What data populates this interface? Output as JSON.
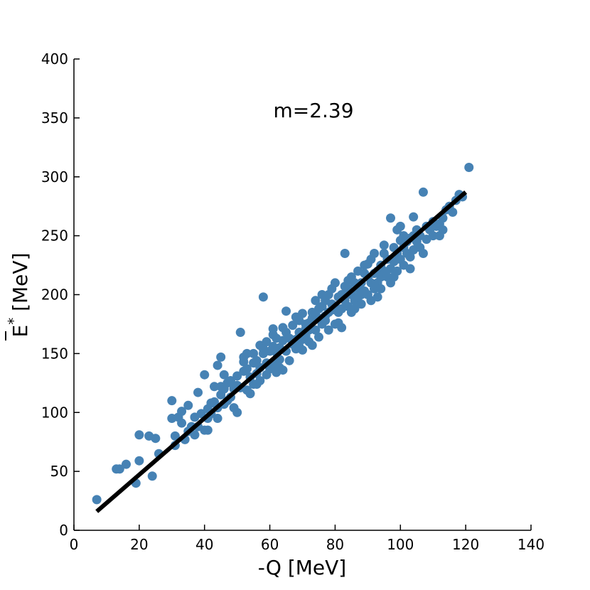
{
  "chart_data": {
    "type": "scatter",
    "xlabel": "-Q [MeV]",
    "ylabel_base": "E",
    "ylabel_sup": "*",
    "ylabel_unit": " [MeV]",
    "annotation": "m=2.39",
    "xlim": [
      0,
      140
    ],
    "ylim": [
      0,
      400
    ],
    "xticks": [
      0,
      20,
      40,
      60,
      80,
      100,
      120,
      140
    ],
    "yticks": [
      0,
      50,
      100,
      150,
      200,
      250,
      300,
      350,
      400
    ],
    "grid": false,
    "colors": {
      "points": "#4682b4",
      "fit": "#000000"
    },
    "fit_line": {
      "x": [
        7,
        120
      ],
      "y": [
        16,
        287
      ]
    },
    "points": [
      [
        7,
        26
      ],
      [
        13,
        52
      ],
      [
        14,
        52
      ],
      [
        16,
        56
      ],
      [
        19,
        40
      ],
      [
        20,
        81
      ],
      [
        20,
        59
      ],
      [
        23,
        80
      ],
      [
        24,
        46
      ],
      [
        25,
        78
      ],
      [
        26,
        65
      ],
      [
        30,
        110
      ],
      [
        30,
        95
      ],
      [
        31,
        80
      ],
      [
        31,
        72
      ],
      [
        32,
        96
      ],
      [
        33,
        101
      ],
      [
        33,
        91
      ],
      [
        34,
        77
      ],
      [
        35,
        106
      ],
      [
        35,
        84
      ],
      [
        36,
        88
      ],
      [
        37,
        81
      ],
      [
        37,
        96
      ],
      [
        38,
        117
      ],
      [
        38,
        88
      ],
      [
        39,
        99
      ],
      [
        40,
        85
      ],
      [
        40,
        132
      ],
      [
        41,
        85
      ],
      [
        41,
        103
      ],
      [
        41,
        95
      ],
      [
        42,
        99
      ],
      [
        42,
        108
      ],
      [
        43,
        122
      ],
      [
        43,
        109
      ],
      [
        44,
        104
      ],
      [
        44,
        95
      ],
      [
        44,
        140
      ],
      [
        45,
        147
      ],
      [
        45,
        115
      ],
      [
        45,
        122
      ],
      [
        46,
        120
      ],
      [
        46,
        107
      ],
      [
        46,
        132
      ],
      [
        47,
        125
      ],
      [
        47,
        110
      ],
      [
        48,
        113
      ],
      [
        48,
        127
      ],
      [
        49,
        104
      ],
      [
        49,
        120
      ],
      [
        50,
        123
      ],
      [
        50,
        100
      ],
      [
        50,
        131
      ],
      [
        51,
        168
      ],
      [
        51,
        121
      ],
      [
        52,
        143
      ],
      [
        52,
        135
      ],
      [
        52,
        147
      ],
      [
        53,
        119
      ],
      [
        53,
        137
      ],
      [
        53,
        150
      ],
      [
        54,
        116
      ],
      [
        54,
        130
      ],
      [
        55,
        142
      ],
      [
        55,
        124
      ],
      [
        55,
        150
      ],
      [
        56,
        133
      ],
      [
        56,
        144
      ],
      [
        56,
        124
      ],
      [
        57,
        157
      ],
      [
        57,
        138
      ],
      [
        57,
        127
      ],
      [
        58,
        150
      ],
      [
        58,
        154
      ],
      [
        58,
        198
      ],
      [
        59,
        142
      ],
      [
        59,
        132
      ],
      [
        59,
        160
      ],
      [
        60,
        137
      ],
      [
        60,
        152
      ],
      [
        61,
        171
      ],
      [
        61,
        166
      ],
      [
        61,
        156
      ],
      [
        61,
        141
      ],
      [
        62,
        134
      ],
      [
        62,
        151
      ],
      [
        62,
        163
      ],
      [
        63,
        155
      ],
      [
        63,
        138
      ],
      [
        63,
        145
      ],
      [
        64,
        172
      ],
      [
        64,
        161
      ],
      [
        64,
        136
      ],
      [
        65,
        168
      ],
      [
        65,
        186
      ],
      [
        65,
        152
      ],
      [
        66,
        163
      ],
      [
        66,
        144
      ],
      [
        67,
        174
      ],
      [
        67,
        158
      ],
      [
        67,
        160
      ],
      [
        68,
        162
      ],
      [
        68,
        154
      ],
      [
        68,
        181
      ],
      [
        69,
        178
      ],
      [
        69,
        168
      ],
      [
        69,
        156
      ],
      [
        70,
        153
      ],
      [
        70,
        162
      ],
      [
        70,
        184
      ],
      [
        71,
        171
      ],
      [
        71,
        165
      ],
      [
        71,
        175
      ],
      [
        72,
        176
      ],
      [
        72,
        160
      ],
      [
        72,
        170
      ],
      [
        73,
        185
      ],
      [
        73,
        157
      ],
      [
        73,
        180
      ],
      [
        74,
        183
      ],
      [
        74,
        170
      ],
      [
        74,
        195
      ],
      [
        75,
        188
      ],
      [
        75,
        180
      ],
      [
        75,
        164
      ],
      [
        76,
        190
      ],
      [
        76,
        175
      ],
      [
        76,
        200
      ],
      [
        77,
        182
      ],
      [
        77,
        195
      ],
      [
        77,
        178
      ],
      [
        78,
        185
      ],
      [
        78,
        200
      ],
      [
        78,
        170
      ],
      [
        79,
        192
      ],
      [
        79,
        205
      ],
      [
        79,
        187
      ],
      [
        80,
        210
      ],
      [
        80,
        190
      ],
      [
        80,
        175
      ],
      [
        81,
        176
      ],
      [
        81,
        198
      ],
      [
        81,
        185
      ],
      [
        82,
        200
      ],
      [
        82,
        188
      ],
      [
        82,
        172
      ],
      [
        83,
        207
      ],
      [
        83,
        195
      ],
      [
        83,
        235
      ],
      [
        84,
        190
      ],
      [
        84,
        205
      ],
      [
        84,
        212
      ],
      [
        85,
        200
      ],
      [
        85,
        185
      ],
      [
        85,
        215
      ],
      [
        86,
        210
      ],
      [
        86,
        195
      ],
      [
        86,
        188
      ],
      [
        87,
        220
      ],
      [
        87,
        205
      ],
      [
        87,
        198
      ],
      [
        88,
        210
      ],
      [
        88,
        200
      ],
      [
        88,
        192
      ],
      [
        89,
        218
      ],
      [
        89,
        203
      ],
      [
        89,
        225
      ],
      [
        90,
        215
      ],
      [
        90,
        200
      ],
      [
        90,
        226
      ],
      [
        91,
        210
      ],
      [
        91,
        195
      ],
      [
        91,
        230
      ],
      [
        92,
        218
      ],
      [
        92,
        205
      ],
      [
        92,
        235
      ],
      [
        93,
        220
      ],
      [
        93,
        210
      ],
      [
        93,
        198
      ],
      [
        94,
        225
      ],
      [
        94,
        215
      ],
      [
        94,
        205
      ],
      [
        95,
        235
      ],
      [
        95,
        220
      ],
      [
        95,
        242
      ],
      [
        96,
        230
      ],
      [
        96,
        215
      ],
      [
        97,
        265
      ],
      [
        97,
        222
      ],
      [
        97,
        210
      ],
      [
        98,
        240
      ],
      [
        98,
        228
      ],
      [
        98,
        215
      ],
      [
        99,
        255
      ],
      [
        99,
        235
      ],
      [
        99,
        220
      ],
      [
        100,
        246
      ],
      [
        100,
        230
      ],
      [
        100,
        258
      ],
      [
        101,
        240
      ],
      [
        101,
        225
      ],
      [
        101,
        250
      ],
      [
        102,
        235
      ],
      [
        102,
        245
      ],
      [
        103,
        232
      ],
      [
        103,
        248
      ],
      [
        103,
        222
      ],
      [
        104,
        266
      ],
      [
        104,
        250
      ],
      [
        104,
        238
      ],
      [
        105,
        245
      ],
      [
        105,
        255
      ],
      [
        106,
        240
      ],
      [
        106,
        250
      ],
      [
        107,
        287
      ],
      [
        107,
        235
      ],
      [
        108,
        247
      ],
      [
        108,
        258
      ],
      [
        109,
        255
      ],
      [
        110,
        262
      ],
      [
        110,
        250
      ],
      [
        111,
        258
      ],
      [
        112,
        260
      ],
      [
        112,
        250
      ],
      [
        113,
        255
      ],
      [
        113,
        265
      ],
      [
        114,
        272
      ],
      [
        115,
        275
      ],
      [
        116,
        270
      ],
      [
        117,
        280
      ],
      [
        118,
        285
      ],
      [
        119,
        283
      ],
      [
        121,
        308
      ]
    ]
  }
}
